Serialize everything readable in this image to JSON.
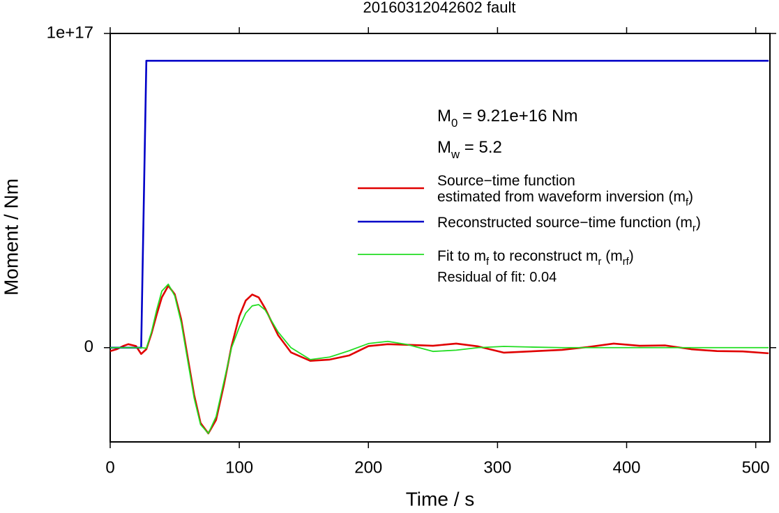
{
  "chart_data": {
    "type": "line",
    "title": "20160312042602 fault",
    "xlabel": "Time / s",
    "ylabel": "Moment / Nm",
    "x": [
      0,
      5,
      10,
      14,
      20,
      24,
      28,
      32,
      36,
      40,
      45,
      50,
      55,
      60,
      65,
      70,
      76,
      82,
      88,
      94,
      100,
      105,
      110,
      115,
      120,
      130,
      140,
      155,
      170,
      185,
      200,
      215,
      230,
      250,
      268,
      285,
      305,
      325,
      350,
      370,
      390,
      410,
      430,
      450,
      470,
      490,
      510
    ],
    "series": [
      {
        "name": [
          [
            "Source−time function"
          ],
          [
            "estimated from waveform inversion (m",
            {
              "sub": "f"
            },
            ")"
          ]
        ],
        "color": "#e00000",
        "width": 2.6,
        "values": [
          -1100000000000000.0,
          -500000000000000.0,
          500000000000000.0,
          1100000000000000.0,
          500000000000000.0,
          -2000000000000000.0,
          -500000000000000.0,
          4500000000000000.0,
          1.05e+16,
          1.6e+16,
          1.97e+16,
          1.7e+16,
          9000000000000000.0,
          -3000000000000000.0,
          -1.5e+16,
          -2.4e+16,
          -2.73e+16,
          -2.3e+16,
          -1.2e+16,
          500000000000000.0,
          1e+16,
          1.5e+16,
          1.69e+16,
          1.6e+16,
          1.25e+16,
          4000000000000000.0,
          -1500000000000000.0,
          -4200000000000000.0,
          -3800000000000000.0,
          -2500000000000000.0,
          500000000000000.0,
          1100000000000000.0,
          900000000000000.0,
          600000000000000.0,
          1300000000000000.0,
          400000000000000.0,
          -1600000000000000.0,
          -1200000000000000.0,
          -700000000000000.0,
          200000000000000.0,
          1300000000000000.0,
          600000000000000.0,
          700000000000000.0,
          -500000000000000.0,
          -1100000000000000.0,
          -1200000000000000.0,
          -1800000000000000.0
        ]
      },
      {
        "name": [
          [
            "Reconstructed source−time function (m",
            {
              "sub": "r"
            },
            ")"
          ]
        ],
        "color": "#0000c8",
        "width": 2.6,
        "values": [
          0,
          0,
          0,
          0,
          0,
          0,
          9.13e+16,
          9.13e+16,
          9.13e+16,
          9.13e+16,
          9.13e+16,
          9.13e+16,
          9.13e+16,
          9.13e+16,
          9.13e+16,
          9.13e+16,
          9.13e+16,
          9.13e+16,
          9.13e+16,
          9.13e+16,
          9.13e+16,
          9.13e+16,
          9.13e+16,
          9.13e+16,
          9.13e+16,
          9.13e+16,
          9.13e+16,
          9.13e+16,
          9.13e+16,
          9.13e+16,
          9.13e+16,
          9.13e+16,
          9.13e+16,
          9.13e+16,
          9.13e+16,
          9.13e+16,
          9.13e+16,
          9.13e+16,
          9.13e+16,
          9.13e+16,
          9.13e+16,
          9.13e+16,
          9.13e+16,
          9.13e+16,
          9.13e+16,
          9.13e+16,
          9.13e+16
        ]
      },
      {
        "name": [
          [
            "Fit to m",
            {
              "sub": "f"
            },
            " to reconstruct m",
            {
              "sub": "r"
            },
            " (m",
            {
              "sub": "rf"
            },
            ")"
          ]
        ],
        "color": "#22dd22",
        "width": 1.8,
        "values": [
          0,
          0,
          0,
          0,
          0,
          0,
          -200000000000000.0,
          5000000000000000.0,
          1.2e+16,
          1.8e+16,
          2.02e+16,
          1.65e+16,
          8000000000000000.0,
          -4000000000000000.0,
          -1.6e+16,
          -2.45e+16,
          -2.73e+16,
          -2.2e+16,
          -1.1e+16,
          0,
          6500000000000000.0,
          1.1e+16,
          1.33e+16,
          1.37e+16,
          1.2e+16,
          5000000000000000.0,
          0,
          -3800000000000000.0,
          -3000000000000000.0,
          -1000000000000000.0,
          1300000000000000.0,
          2000000000000000.0,
          1000000000000000.0,
          -1200000000000000.0,
          -800000000000000.0,
          0,
          400000000000000.0,
          200000000000000.0,
          0,
          0,
          0,
          0,
          0,
          0,
          0,
          0,
          0
        ]
      }
    ],
    "annotations": [
      [
        "M",
        {
          "sub": "0"
        },
        " = 9.21e+16 Nm"
      ],
      [
        "M",
        {
          "sub": "w"
        },
        " = 5.2"
      ],
      [
        "Residual of fit: 0.04"
      ]
    ],
    "xlim": [
      0,
      511
    ],
    "xticks": [
      0,
      100,
      200,
      300,
      400,
      500
    ],
    "ylim": [
      -3e+16,
      1e+17
    ],
    "yticks": [
      0,
      {
        "value": 1e+17,
        "label": "1e+17"
      }
    ]
  }
}
